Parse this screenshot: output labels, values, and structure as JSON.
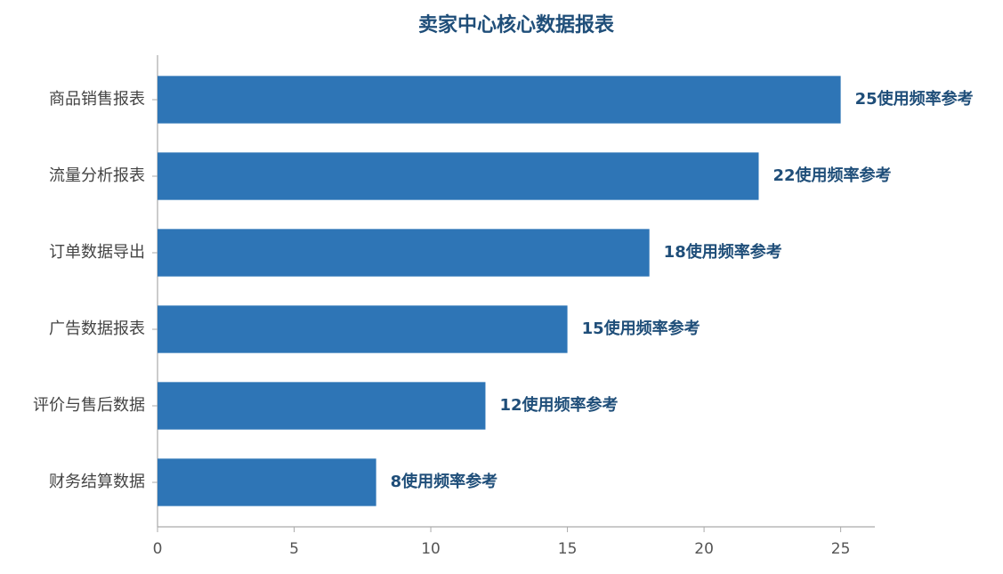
{
  "chart_data": {
    "type": "barh",
    "title": "卖家中心核心数据报表",
    "categories": [
      "商品销售报表",
      "流量分析报表",
      "订单数据导出",
      "广告数据报表",
      "评价与售后数据",
      "财务结算数据"
    ],
    "values": [
      25,
      22,
      18,
      15,
      12,
      8
    ],
    "value_labels": [
      "25使用频率参考",
      "22使用频率参考",
      "18使用频率参考",
      "15使用频率参考",
      "12使用频率参考",
      "8使用频率参考"
    ],
    "color": "#2e75b6",
    "xlim": [
      0,
      26.25
    ],
    "xticks": [
      0,
      5,
      10,
      15,
      20,
      25
    ],
    "grid": false
  }
}
